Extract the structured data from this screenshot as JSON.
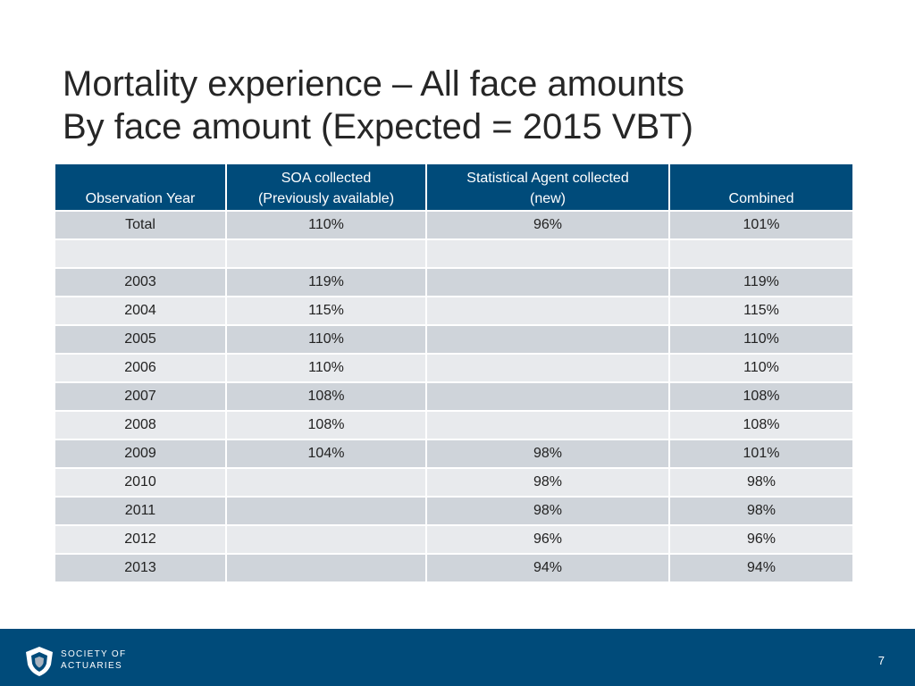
{
  "slide": {
    "title_line1": "Mortality experience – All face amounts",
    "title_line2": "By face amount (Expected = 2015 VBT)"
  },
  "table": {
    "headers": [
      {
        "line1": "",
        "line2": "Observation Year"
      },
      {
        "line1": "SOA collected",
        "line2": "(Previously available)"
      },
      {
        "line1": "Statistical Agent collected",
        "line2": "(new)"
      },
      {
        "line1": "",
        "line2": "Combined"
      }
    ],
    "rows": [
      {
        "year": "Total",
        "soa": "110%",
        "agent": "96%",
        "combined": "101%"
      },
      {
        "year": "",
        "soa": "",
        "agent": "",
        "combined": ""
      },
      {
        "year": "2003",
        "soa": "119%",
        "agent": "",
        "combined": "119%"
      },
      {
        "year": "2004",
        "soa": "115%",
        "agent": "",
        "combined": "115%"
      },
      {
        "year": "2005",
        "soa": "110%",
        "agent": "",
        "combined": "110%"
      },
      {
        "year": "2006",
        "soa": "110%",
        "agent": "",
        "combined": "110%"
      },
      {
        "year": "2007",
        "soa": "108%",
        "agent": "",
        "combined": "108%"
      },
      {
        "year": "2008",
        "soa": "108%",
        "agent": "",
        "combined": "108%"
      },
      {
        "year": "2009",
        "soa": "104%",
        "agent": "98%",
        "combined": "101%"
      },
      {
        "year": "2010",
        "soa": "",
        "agent": "98%",
        "combined": "98%"
      },
      {
        "year": "2011",
        "soa": "",
        "agent": "98%",
        "combined": "98%"
      },
      {
        "year": "2012",
        "soa": "",
        "agent": "96%",
        "combined": "96%"
      },
      {
        "year": "2013",
        "soa": "",
        "agent": "94%",
        "combined": "94%"
      }
    ]
  },
  "footer": {
    "org_line1": "SOCIETY OF",
    "org_line2": "ACTUARIES",
    "page_number": "7",
    "logo_icon": "soa-shield-logo-icon"
  },
  "colors": {
    "brand_blue": "#004b7a",
    "row_dark": "#cfd4da",
    "row_light": "#e8eaed"
  }
}
